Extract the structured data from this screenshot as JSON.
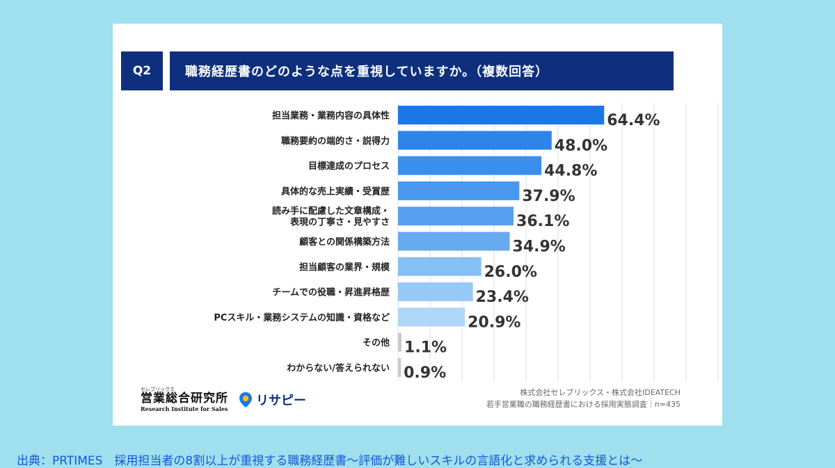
{
  "header": {
    "q_tag": "Q2",
    "question": "職務経歴書のどのような点を重視していますか。（複数回答）"
  },
  "chart_data": {
    "type": "bar",
    "orientation": "horizontal",
    "title": "職務経歴書のどのような点を重視していますか。（複数回答）",
    "categories": [
      [
        "担当業務・業務内容の具体性"
      ],
      [
        "職務要約の端的さ・説得力"
      ],
      [
        "目標達成のプロセス"
      ],
      [
        "具体的な売上実績・受賞歴"
      ],
      [
        "読み手に配慮した文章構成・",
        "表現の丁寧さ・見やすさ"
      ],
      [
        "顧客との関係構築方法"
      ],
      [
        "担当顧客の業界・規模"
      ],
      [
        "チームでの役職・昇進昇格歴"
      ],
      [
        "PCスキル・業務システムの知識・資格など"
      ],
      [
        "その他"
      ],
      [
        "わからない/答えられない"
      ]
    ],
    "values": [
      64.4,
      48.0,
      44.8,
      37.9,
      36.1,
      34.9,
      26.0,
      23.4,
      20.9,
      1.1,
      0.9
    ],
    "value_labels": [
      "64.4%",
      "48.0%",
      "44.8%",
      "37.9%",
      "36.1%",
      "34.9%",
      "26.0%",
      "23.4%",
      "20.9%",
      "1.1%",
      "0.9%"
    ],
    "colors": [
      "#1a78e6",
      "#2c86ea",
      "#3a8fec",
      "#4a98ee",
      "#57a1f0",
      "#67aaf0",
      "#86bff4",
      "#98c9f6",
      "#aed6f8",
      "#c9c9c9",
      "#c9c9c9"
    ],
    "xlim": [
      0,
      100
    ],
    "grid": true,
    "legend": "none"
  },
  "logos": {
    "org_ruby": "セレブリックス",
    "org_name": "営業総合研究所",
    "org_en": "Research Institute for Sales",
    "service": "リサピー"
  },
  "source": {
    "line1": "株式会社セレブリックス・株式会社IDEATECH",
    "line2": "若手営業職の職務経歴書における採用実態調査｜n=435"
  },
  "footer": {
    "text": "出典：PRTIMES　採用担当者の8割以上が重視する職務経歴書～評価が難しいスキルの言語化と求められる支援とは～"
  }
}
